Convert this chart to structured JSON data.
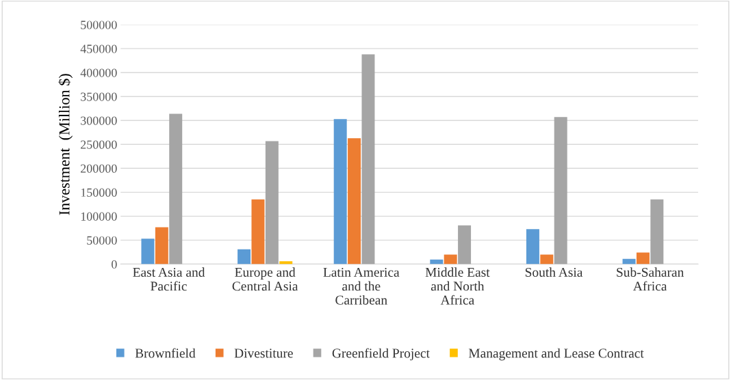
{
  "chart_data": {
    "type": "bar",
    "ylabel": "Investment  (Million $)",
    "categories": [
      "East Asia and\nPacific",
      "Europe and\nCentral Asia",
      "Latin America\nand the\nCarribean",
      "Middle East\nand North\nAfrica",
      "South Asia",
      "Sub-Saharan\nAfrica"
    ],
    "series": [
      {
        "name": "Brownfield",
        "color": "#5b9bd5",
        "values": [
          53000,
          31000,
          303000,
          9500,
          73000,
          11000
        ]
      },
      {
        "name": "Divestiture",
        "color": "#ed7d31",
        "values": [
          77000,
          135000,
          263000,
          20000,
          20000,
          24000
        ]
      },
      {
        "name": "Greenfield Project",
        "color": "#a5a5a5",
        "values": [
          314000,
          257000,
          438000,
          81000,
          307000,
          135000
        ]
      },
      {
        "name": "Management and Lease Contract",
        "color": "#ffc000",
        "values": [
          0,
          6000,
          0,
          0,
          0,
          0
        ]
      }
    ],
    "ylim": [
      0,
      500000
    ],
    "yticks": [
      0,
      50000,
      100000,
      150000,
      200000,
      250000,
      300000,
      350000,
      400000,
      450000,
      500000
    ],
    "grid": "y",
    "legend": "bottom"
  }
}
